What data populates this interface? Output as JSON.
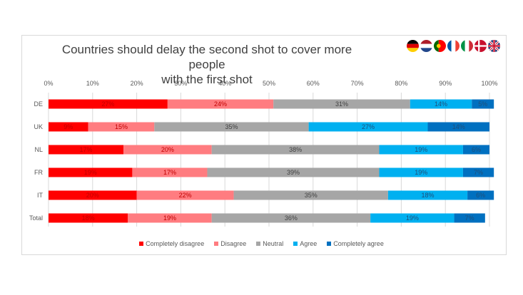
{
  "chart_data": {
    "type": "bar",
    "orientation": "horizontal-stacked-100",
    "title_lines": [
      "Countries should delay the second shot to cover more people",
      "with the first shot"
    ],
    "categories": [
      "DE",
      "UK",
      "NL",
      "FR",
      "IT",
      "Total"
    ],
    "xlim": [
      0,
      100
    ],
    "x_ticks": [
      "0%",
      "10%",
      "20%",
      "30%",
      "40%",
      "50%",
      "60%",
      "70%",
      "80%",
      "90%",
      "100%"
    ],
    "grid": true,
    "legend_position": "bottom",
    "series": [
      {
        "name": "Completely disagree",
        "color": "#ff0000",
        "label_color": "#c00000",
        "values": [
          27,
          9,
          17,
          19,
          20,
          18
        ],
        "labels": [
          "27%",
          "9%",
          "17%",
          "19%",
          "20%",
          "18%"
        ]
      },
      {
        "name": "Disagree",
        "color": "#ff7c80",
        "label_color": "#c00000",
        "values": [
          24,
          15,
          20,
          17,
          22,
          19
        ],
        "labels": [
          "24%",
          "15%",
          "20%",
          "17%",
          "22%",
          "19%"
        ]
      },
      {
        "name": "Neutral",
        "color": "#a6a6a6",
        "label_color": "#404040",
        "values": [
          31,
          35,
          38,
          39,
          35,
          36
        ],
        "labels": [
          "31%",
          "35%",
          "38%",
          "39%",
          "35%",
          "36%"
        ]
      },
      {
        "name": "Agree",
        "color": "#00b0f0",
        "label_color": "#1f4e79",
        "values": [
          14,
          27,
          19,
          19,
          18,
          19
        ],
        "labels": [
          "14%",
          "27%",
          "19%",
          "19%",
          "18%",
          "19%"
        ]
      },
      {
        "name": "Completely agree",
        "color": "#0070c0",
        "label_color": "#1f4e79",
        "values": [
          5,
          14,
          6,
          7,
          6,
          7
        ],
        "labels": [
          "5%",
          "14%",
          "6%",
          "7%",
          "6%",
          "7%"
        ]
      }
    ]
  },
  "flags": [
    "germany-flag-icon",
    "netherlands-flag-icon",
    "portugal-flag-icon",
    "france-flag-icon",
    "italy-flag-icon",
    "denmark-flag-icon",
    "uk-flag-icon"
  ]
}
